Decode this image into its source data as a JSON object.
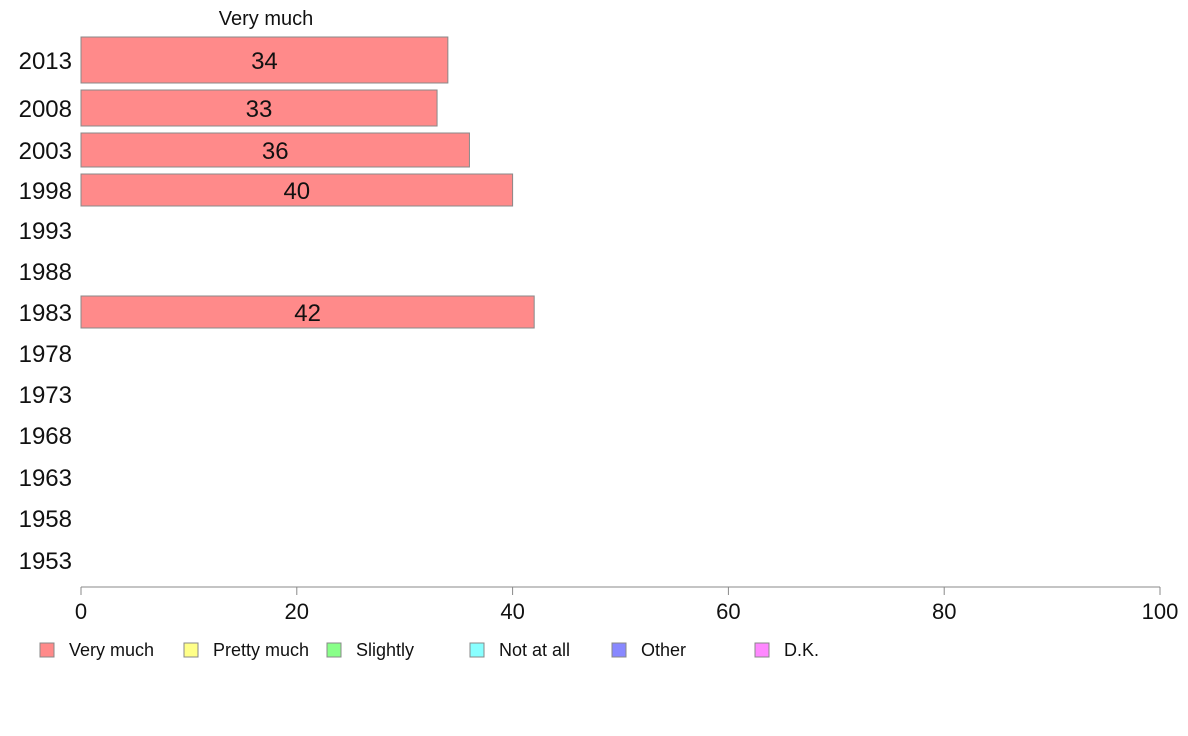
{
  "chart_data": {
    "type": "bar",
    "orientation": "horizontal",
    "series_title": "Very much",
    "categories": [
      "2013",
      "2008",
      "2003",
      "1998",
      "1993",
      "1988",
      "1983",
      "1978",
      "1973",
      "1968",
      "1963",
      "1958",
      "1953"
    ],
    "series": [
      {
        "name": "Very much",
        "color": "#ff8a8a",
        "values": [
          34,
          33,
          36,
          40,
          null,
          null,
          42,
          null,
          null,
          null,
          null,
          null,
          null
        ],
        "labels": [
          "34",
          "33",
          "36",
          "40",
          "",
          "",
          "42",
          "",
          "",
          "",
          "",
          "",
          ""
        ]
      }
    ],
    "xlim": [
      0,
      100
    ],
    "xticks": [
      "0",
      "20",
      "40",
      "60",
      "80",
      "100"
    ],
    "grid": false,
    "legend_position": "bottom",
    "legend": [
      {
        "label": "Very much",
        "color": "#ff8a8a"
      },
      {
        "label": "Pretty much",
        "color": "#ffff88"
      },
      {
        "label": "Slightly",
        "color": "#88ff88"
      },
      {
        "label": "Not at all",
        "color": "#88ffff"
      },
      {
        "label": "Other",
        "color": "#8888ff"
      },
      {
        "label": "D.K.",
        "color": "#ff88ff"
      }
    ]
  }
}
